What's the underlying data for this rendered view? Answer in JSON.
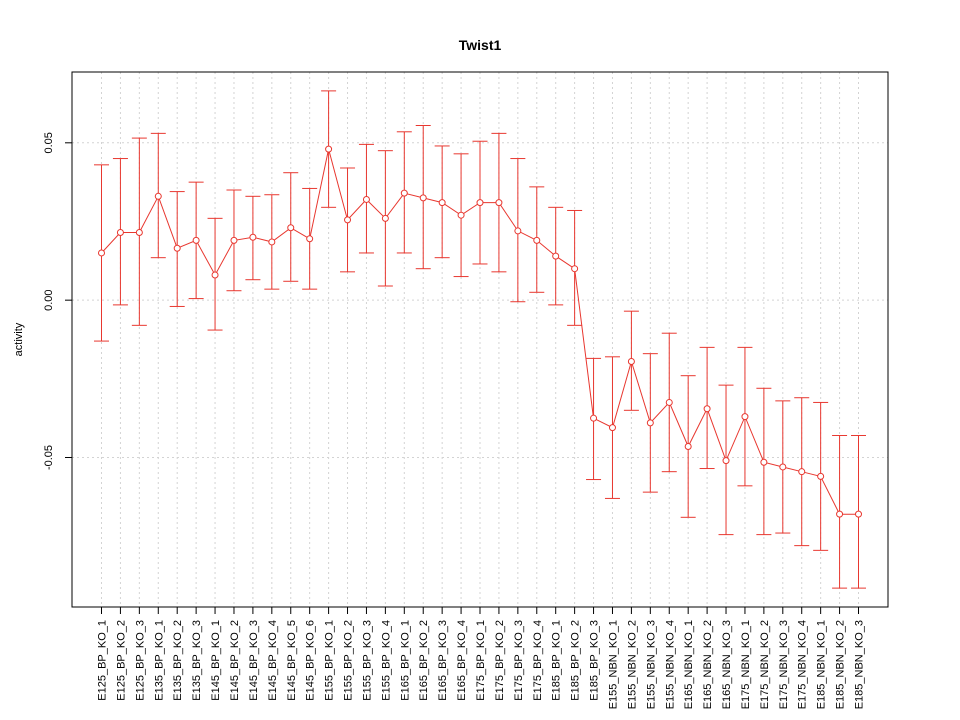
{
  "chart_data": {
    "type": "line",
    "title": "Twist1",
    "xlabel": "",
    "ylabel": "activity",
    "ylim": [
      -0.0975,
      0.0725
    ],
    "yticks": [
      -0.05,
      0.0,
      0.05
    ],
    "ytick_labels": [
      "-0.05",
      "0.00",
      "0.05"
    ],
    "grid": true,
    "error_bars": true,
    "legend": "none",
    "color": "#e8372f",
    "grid_color": "#d3d3d3",
    "categories": [
      "E125_BP_KO_1",
      "E125_BP_KO_2",
      "E125_BP_KO_3",
      "E135_BP_KO_1",
      "E135_BP_KO_2",
      "E135_BP_KO_3",
      "E145_BP_KO_1",
      "E145_BP_KO_2",
      "E145_BP_KO_3",
      "E145_BP_KO_4",
      "E145_BP_KO_5",
      "E145_BP_KO_6",
      "E155_BP_KO_1",
      "E155_BP_KO_2",
      "E155_BP_KO_3",
      "E155_BP_KO_4",
      "E165_BP_KO_1",
      "E165_BP_KO_2",
      "E165_BP_KO_3",
      "E165_BP_KO_4",
      "E175_BP_KO_1",
      "E175_BP_KO_2",
      "E175_BP_KO_3",
      "E175_BP_KO_4",
      "E185_BP_KO_1",
      "E185_BP_KO_2",
      "E185_BP_KO_3",
      "E155_NBN_KO_1",
      "E155_NBN_KO_2",
      "E155_NBN_KO_3",
      "E155_NBN_KO_4",
      "E165_NBN_KO_1",
      "E165_NBN_KO_2",
      "E165_NBN_KO_3",
      "E175_NBN_KO_1",
      "E175_NBN_KO_2",
      "E175_NBN_KO_3",
      "E175_NBN_KO_4",
      "E185_NBN_KO_1",
      "E185_NBN_KO_2",
      "E185_NBN_KO_3"
    ],
    "values": [
      0.015,
      0.0215,
      0.0215,
      0.033,
      0.0165,
      0.019,
      0.008,
      0.019,
      0.02,
      0.0185,
      0.023,
      0.0195,
      0.048,
      0.0255,
      0.032,
      0.026,
      0.034,
      0.0325,
      0.031,
      0.027,
      0.031,
      0.031,
      0.022,
      0.019,
      0.014,
      0.01,
      -0.0375,
      -0.0405,
      -0.0195,
      -0.039,
      -0.0325,
      -0.0465,
      -0.0345,
      -0.051,
      -0.037,
      -0.0515,
      -0.053,
      -0.0545,
      -0.056,
      -0.068,
      -0.068
    ],
    "upper": [
      0.043,
      0.045,
      0.0515,
      0.053,
      0.0345,
      0.0375,
      0.026,
      0.035,
      0.033,
      0.0335,
      0.0405,
      0.0355,
      0.0665,
      0.042,
      0.0495,
      0.0475,
      0.0535,
      0.0555,
      0.049,
      0.0465,
      0.0505,
      0.053,
      0.045,
      0.036,
      0.0295,
      0.0285,
      -0.0185,
      -0.018,
      -0.0035,
      -0.017,
      -0.0105,
      -0.024,
      -0.015,
      -0.027,
      -0.015,
      -0.028,
      -0.032,
      -0.031,
      -0.0325,
      -0.043,
      -0.043
    ],
    "lower": [
      -0.013,
      -0.0015,
      -0.008,
      0.0135,
      -0.002,
      0.0005,
      -0.0095,
      0.003,
      0.0065,
      0.0035,
      0.006,
      0.0035,
      0.0295,
      0.009,
      0.015,
      0.0045,
      0.015,
      0.01,
      0.0135,
      0.0075,
      0.0115,
      0.009,
      -0.0005,
      0.0025,
      -0.0015,
      -0.008,
      -0.057,
      -0.063,
      -0.035,
      -0.061,
      -0.0545,
      -0.069,
      -0.0535,
      -0.0745,
      -0.059,
      -0.0745,
      -0.074,
      -0.078,
      -0.0795,
      -0.0915,
      -0.0915
    ]
  }
}
